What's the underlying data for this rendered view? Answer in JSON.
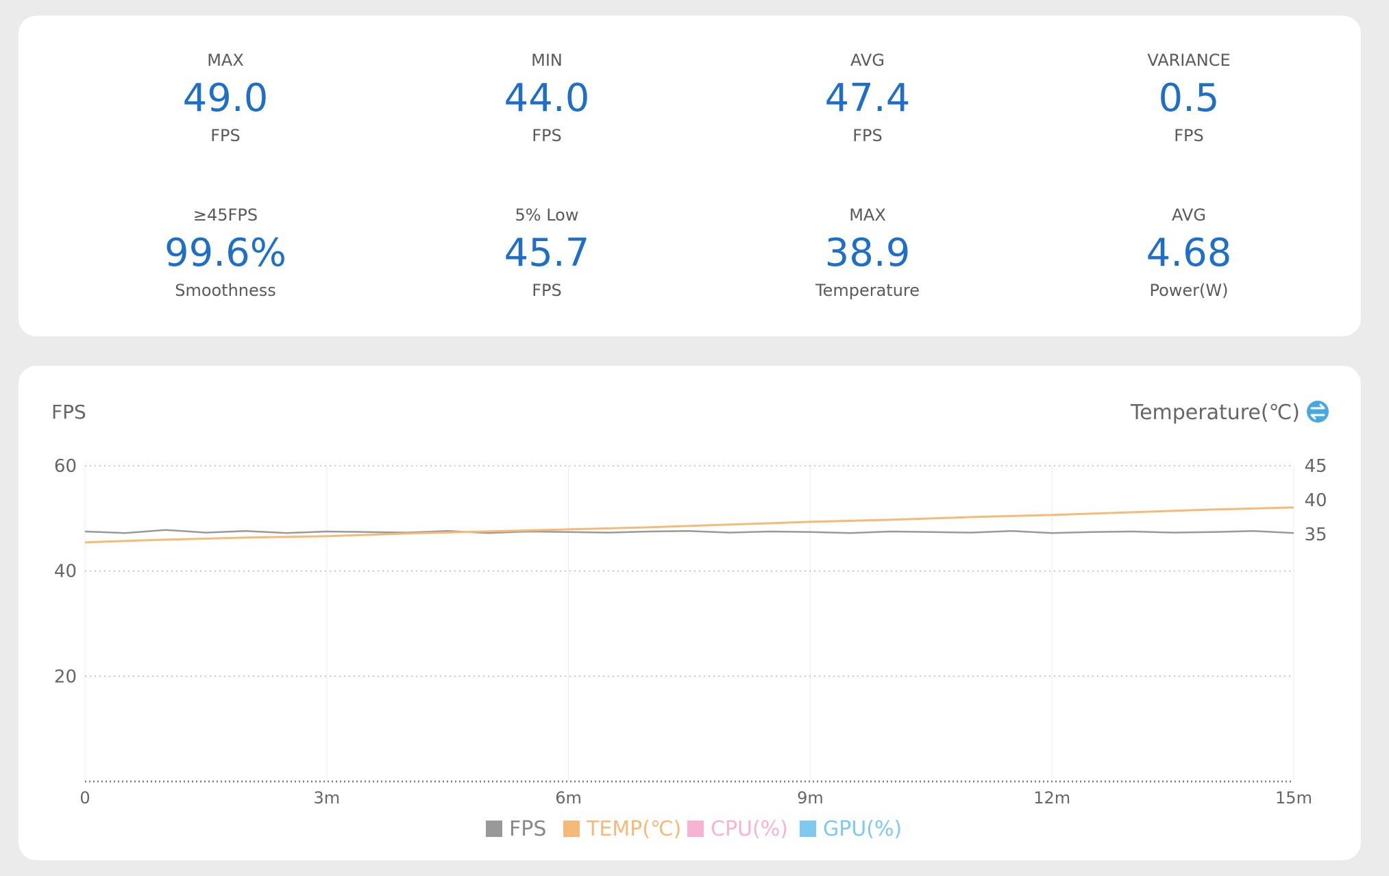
{
  "stats": [
    {
      "label": "MAX",
      "value": "49.0",
      "unit": "FPS"
    },
    {
      "label": "MIN",
      "value": "44.0",
      "unit": "FPS"
    },
    {
      "label": "AVG",
      "value": "47.4",
      "unit": "FPS"
    },
    {
      "label": "VARIANCE",
      "value": "0.5",
      "unit": "FPS"
    },
    {
      "label": "≥45FPS",
      "value": "99.6%",
      "unit": "Smoothness"
    },
    {
      "label": "5% Low",
      "value": "45.7",
      "unit": "FPS"
    },
    {
      "label": "MAX",
      "value": "38.9",
      "unit": "Temperature"
    },
    {
      "label": "AVG",
      "value": "4.68",
      "unit": "Power(W)"
    }
  ],
  "colors": {
    "accent": "#1f6fc6",
    "fps": "#999999",
    "temp": "#f5b97a",
    "cpu": "#f7b3d2",
    "gpu": "#7fc8ef",
    "toggle": "#4aa8e0"
  },
  "chart_data": {
    "type": "line",
    "left_axis_label": "FPS",
    "right_axis_label": "Temperature(℃)",
    "toggle_icon": "swap-axis-icon",
    "x_ticks": [
      "0",
      "3m",
      "6m",
      "9m",
      "12m",
      "15m"
    ],
    "xlim_minutes": [
      0,
      15
    ],
    "y_left_ticks": [
      60,
      40,
      20
    ],
    "ylim_left": [
      0,
      60
    ],
    "y_right_ticks": [
      45,
      40,
      35
    ],
    "right_axis_map": {
      "35": 47,
      "40": 53,
      "45": 60
    },
    "grid": "dotted-horizontal",
    "legend_position": "bottom-center",
    "legend": [
      "FPS",
      "TEMP(℃)",
      "CPU(%)",
      "GPU(%)"
    ],
    "series": [
      {
        "name": "FPS",
        "axis": "left",
        "approx_range": [
          44,
          49
        ],
        "x_minutes": [
          0,
          0.5,
          1,
          1.5,
          2,
          2.5,
          3,
          3.5,
          4,
          4.5,
          5,
          5.5,
          6,
          6.5,
          7,
          7.5,
          8,
          8.5,
          9,
          9.5,
          10,
          10.5,
          11,
          11.5,
          12,
          12.5,
          13,
          13.5,
          14,
          14.5,
          15
        ],
        "values": [
          47.5,
          47.2,
          47.8,
          47.3,
          47.6,
          47.2,
          47.5,
          47.4,
          47.3,
          47.6,
          47.2,
          47.5,
          47.4,
          47.3,
          47.5,
          47.6,
          47.3,
          47.5,
          47.4,
          47.2,
          47.5,
          47.4,
          47.3,
          47.6,
          47.2,
          47.4,
          47.5,
          47.3,
          47.4,
          47.6,
          47.2
        ]
      },
      {
        "name": "TEMP(℃)",
        "axis": "right",
        "x_minutes": [
          0,
          1,
          2,
          3,
          4,
          5,
          6,
          7,
          8,
          9,
          10,
          11,
          12,
          13,
          14,
          15
        ],
        "values": [
          33.8,
          34.2,
          34.5,
          34.7,
          35.1,
          35.4,
          35.7,
          36.0,
          36.4,
          36.8,
          37.1,
          37.5,
          37.8,
          38.2,
          38.6,
          38.9
        ]
      },
      {
        "name": "CPU(%)",
        "axis": "left",
        "values": []
      },
      {
        "name": "GPU(%)",
        "axis": "left",
        "values": []
      }
    ]
  }
}
